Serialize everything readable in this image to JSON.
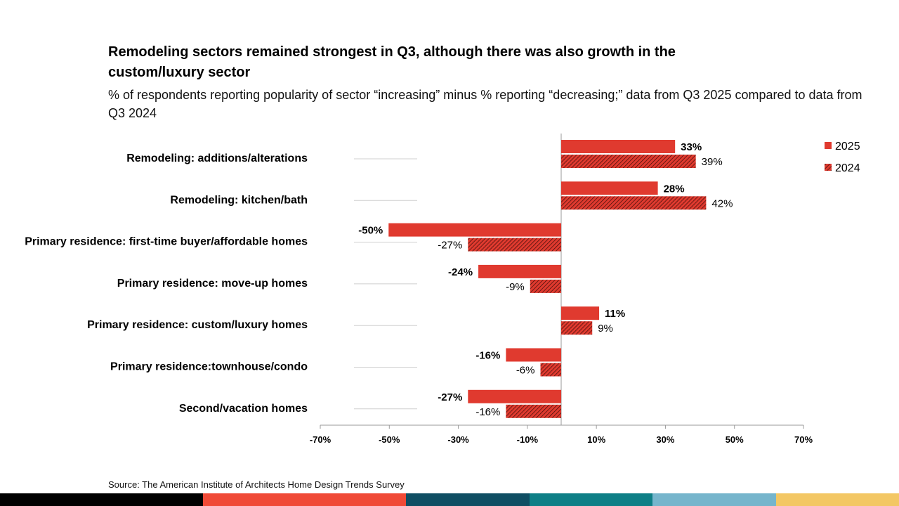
{
  "title": "Remodeling sectors remained strongest in Q3, although there was also growth in the custom/luxury sector",
  "subtitle": "% of respondents reporting popularity of sector “increasing” minus % reporting “decreasing;” data from Q3 2025 compared to data from Q3 2024",
  "source": "Source: The American Institute of Architects Home Design Trends Survey",
  "chart_data": {
    "type": "bar",
    "orientation": "horizontal",
    "categories": [
      "Remodeling: additions/alterations",
      "Remodeling: kitchen/bath",
      "Primary residence: first-time buyer/affordable homes",
      "Primary residence: move-up homes",
      "Primary residence: custom/luxury homes",
      "Primary residence:townhouse/condo",
      "Second/vacation homes"
    ],
    "series": [
      {
        "name": "2025",
        "values": [
          33,
          28,
          -50,
          -24,
          11,
          -16,
          -27
        ],
        "labels": [
          "33%",
          "28%",
          "-50%",
          "-24%",
          "11%",
          "-16%",
          "-27%"
        ],
        "color": "#e03a2f",
        "pattern": "solid"
      },
      {
        "name": "2024",
        "values": [
          39,
          42,
          -27,
          -9,
          9,
          -6,
          -16
        ],
        "labels": [
          "39%",
          "42%",
          "-27%",
          "-9%",
          "9%",
          "-6%",
          "-16%"
        ],
        "color": "#e03a2f",
        "pattern": "hatched"
      }
    ],
    "xlim": [
      -70,
      70
    ],
    "xticks": [
      -70,
      -50,
      -30,
      -10,
      10,
      30,
      50,
      70
    ],
    "xtick_labels": [
      "-70%",
      "-50%",
      "-30%",
      "-10%",
      "10%",
      "30%",
      "50%",
      "70%"
    ],
    "legend_position": "top-right"
  },
  "footer_colors": [
    "#000000",
    "#f04a37",
    "#0f4e63",
    "#0e7f86",
    "#76b5cc",
    "#f3c764"
  ]
}
